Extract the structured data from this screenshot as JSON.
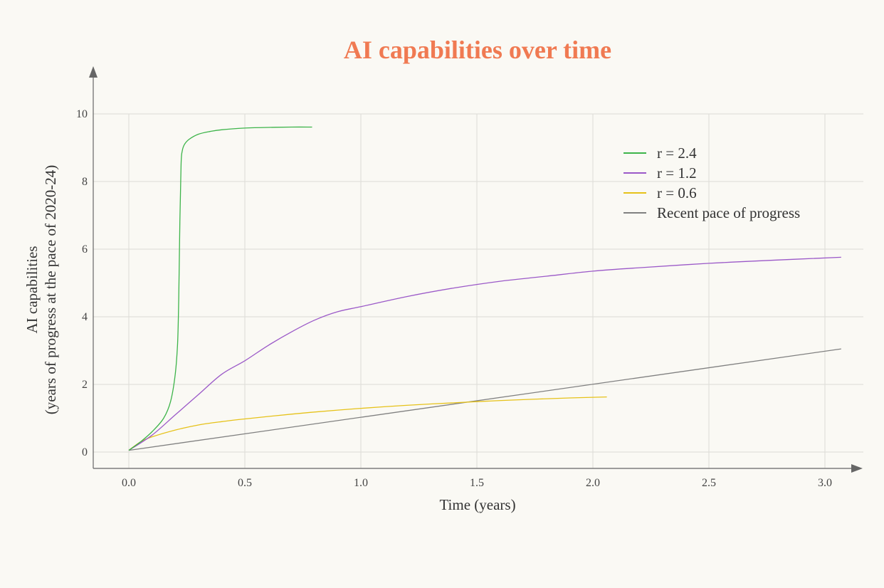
{
  "chart_data": {
    "type": "line",
    "title": "AI capabilities over time",
    "title_color": "#f07a52",
    "xlabel": "Time (years)",
    "ylabel": [
      "AI capabilities",
      "(years of progress at the pace of 2020-24)"
    ],
    "xlim": [
      -0.15,
      3.15
    ],
    "ylim": [
      -0.5,
      11
    ],
    "xticks": [
      0.0,
      0.5,
      1.0,
      1.5,
      2.0,
      2.5,
      3.0
    ],
    "xtick_labels": [
      "0.0",
      "0.5",
      "1.0",
      "1.5",
      "2.0",
      "2.5",
      "3.0"
    ],
    "yticks": [
      0,
      2,
      4,
      6,
      8,
      10
    ],
    "ytick_labels": [
      "0",
      "2",
      "4",
      "6",
      "8",
      "10"
    ],
    "grid": true,
    "legend_position": "top-right",
    "series": [
      {
        "name": "r = 2.4",
        "color": "#3db44a",
        "x": [
          0,
          0.05,
          0.1,
          0.15,
          0.18,
          0.2,
          0.21,
          0.215,
          0.22,
          0.225,
          0.23,
          0.24,
          0.26,
          0.3,
          0.35,
          0.4,
          0.5,
          0.6,
          0.7,
          0.79
        ],
        "y": [
          0.05,
          0.3,
          0.6,
          1.0,
          1.5,
          2.3,
          3.2,
          4.5,
          6.8,
          8.5,
          8.9,
          9.1,
          9.25,
          9.4,
          9.48,
          9.53,
          9.58,
          9.6,
          9.61,
          9.61
        ]
      },
      {
        "name": "r = 1.2",
        "color": "#9b59c8",
        "x": [
          0,
          0.1,
          0.2,
          0.3,
          0.4,
          0.5,
          0.6,
          0.7,
          0.8,
          0.9,
          1.0,
          1.2,
          1.4,
          1.6,
          1.8,
          2.0,
          2.2,
          2.5,
          2.8,
          3.07
        ],
        "y": [
          0.05,
          0.5,
          1.1,
          1.7,
          2.3,
          2.7,
          3.15,
          3.55,
          3.9,
          4.15,
          4.3,
          4.6,
          4.85,
          5.05,
          5.2,
          5.35,
          5.45,
          5.58,
          5.68,
          5.76
        ]
      },
      {
        "name": "r = 0.6",
        "color": "#e6c21a",
        "x": [
          0,
          0.05,
          0.1,
          0.2,
          0.3,
          0.4,
          0.5,
          0.7,
          0.9,
          1.1,
          1.3,
          1.5,
          1.7,
          1.9,
          2.06
        ],
        "y": [
          0.05,
          0.3,
          0.45,
          0.65,
          0.8,
          0.9,
          0.98,
          1.12,
          1.24,
          1.34,
          1.42,
          1.49,
          1.55,
          1.6,
          1.63
        ]
      },
      {
        "name": "Recent pace of progress",
        "color": "#808080",
        "x": [
          0,
          3.07
        ],
        "y": [
          0.05,
          3.05
        ]
      }
    ]
  }
}
